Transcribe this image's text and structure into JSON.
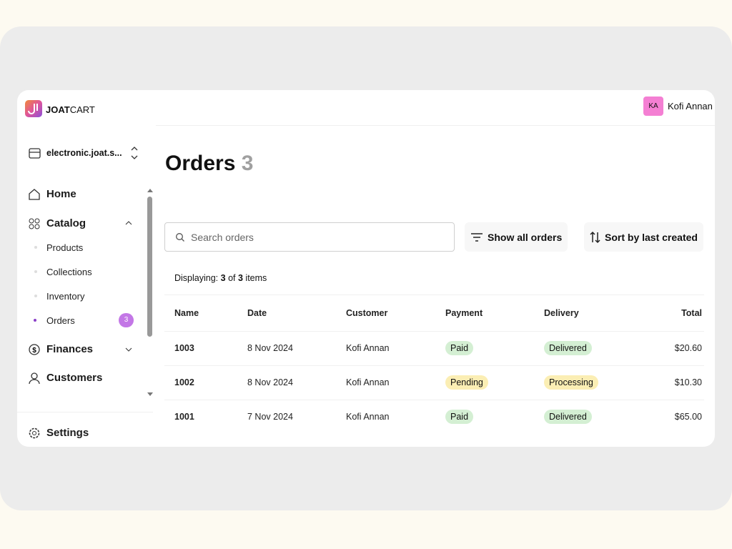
{
  "brand": {
    "name_bold": "JOAT",
    "name_rest": "CART"
  },
  "user": {
    "initials": "KA",
    "name": "Kofi Annan"
  },
  "store": "electronic.joat.s...",
  "nav": {
    "home": "Home",
    "catalog": "Catalog",
    "catalog_items": [
      "Products",
      "Collections",
      "Inventory",
      "Orders"
    ],
    "orders_badge": 3,
    "finances": "Finances",
    "customers": "Customers",
    "settings": "Settings"
  },
  "page": {
    "title": "Orders",
    "count": 3
  },
  "toolbar": {
    "search_placeholder": "Search orders",
    "filter": "Show all orders",
    "sort": "Sort by last created"
  },
  "summary": {
    "label": "Displaying:",
    "shown": 3,
    "of": "of",
    "total": 3,
    "unit": "items"
  },
  "table": {
    "headers": [
      "Name",
      "Date",
      "Customer",
      "Payment",
      "Delivery",
      "Total"
    ],
    "rows": [
      [
        "1003",
        "8 Nov 2024",
        "Kofi Annan",
        "Paid",
        "Delivered",
        "$20.60"
      ],
      [
        "1002",
        "8 Nov 2024",
        "Kofi Annan",
        "Pending",
        "Processing",
        "$10.30"
      ],
      [
        "1001",
        "7 Nov 2024",
        "Kofi Annan",
        "Paid",
        "Delivered",
        "$65.00"
      ]
    ]
  }
}
